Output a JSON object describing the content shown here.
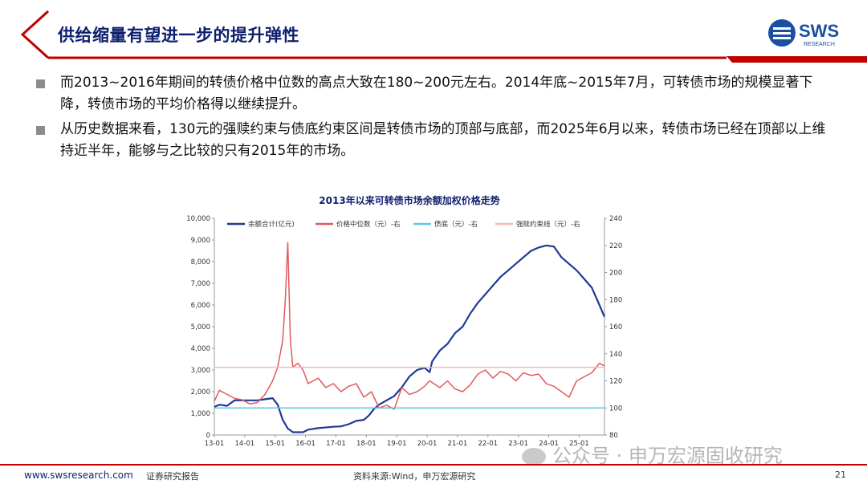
{
  "header": {
    "title": "供给缩量有望进一步的提升弹性",
    "logo_text": "SWS",
    "logo_subtext": "RESEARCH",
    "accent_color": "#c00000",
    "title_color": "#0d1f6e"
  },
  "bullets": [
    "而2013~2016年期间的转债价格中位数的高点大致在180~200元左右。2014年底~2015年7月，可转债市场的规模显著下降，转债市场的平均价格得以继续提升。",
    "从历史数据来看，130元的强赎约束与债底约束区间是转债市场的顶部与底部，而2025年6月以来，转债市场已经在顶部以上维持近半年，能够与之比较的只有2015年的市场。"
  ],
  "footer": {
    "url": "www.swsresearch.com",
    "category": "证券研究报告",
    "source": "资料来源:Wind，申万宏源研究",
    "page": "21"
  },
  "watermark": "公众号 · 申万宏源固收研究",
  "chart_data": {
    "type": "line",
    "title": "2013年以来可转债市场余额加权价格走势",
    "x_ticks": [
      "13-01",
      "14-01",
      "15-01",
      "16-01",
      "17-01",
      "18-01",
      "19-01",
      "20-01",
      "21-01",
      "22-01",
      "23-01",
      "24-01",
      "25-01"
    ],
    "x_range": [
      "2013-01",
      "2025-11"
    ],
    "y_left": {
      "min": 0,
      "max": 10000,
      "ticks": [
        "0",
        "1,000",
        "2,000",
        "3,000",
        "4,000",
        "5,000",
        "6,000",
        "7,000",
        "8,000",
        "9,000",
        "10,000"
      ]
    },
    "y_right": {
      "min": 80,
      "max": 240,
      "ticks": [
        "80",
        "100",
        "120",
        "140",
        "160",
        "180",
        "200",
        "220",
        "240"
      ]
    },
    "series": [
      {
        "name": "余额合计(亿元)",
        "axis": "left",
        "color": "#1f3a93",
        "points": [
          [
            "2013-01",
            1300
          ],
          [
            "2013-03",
            1400
          ],
          [
            "2013-06",
            1350
          ],
          [
            "2013-09",
            1600
          ],
          [
            "2013-12",
            1600
          ],
          [
            "2014-03",
            1600
          ],
          [
            "2014-06",
            1600
          ],
          [
            "2014-09",
            1650
          ],
          [
            "2014-12",
            1700
          ],
          [
            "2015-02",
            1400
          ],
          [
            "2015-04",
            700
          ],
          [
            "2015-06",
            300
          ],
          [
            "2015-08",
            130
          ],
          [
            "2015-12",
            130
          ],
          [
            "2016-02",
            250
          ],
          [
            "2016-06",
            320
          ],
          [
            "2016-12",
            380
          ],
          [
            "2017-03",
            400
          ],
          [
            "2017-06",
            500
          ],
          [
            "2017-09",
            650
          ],
          [
            "2017-12",
            700
          ],
          [
            "2018-02",
            900
          ],
          [
            "2018-04",
            1200
          ],
          [
            "2018-06",
            1400
          ],
          [
            "2018-09",
            1600
          ],
          [
            "2018-12",
            1800
          ],
          [
            "2019-03",
            2200
          ],
          [
            "2019-06",
            2700
          ],
          [
            "2019-09",
            3000
          ],
          [
            "2019-12",
            3100
          ],
          [
            "2020-02",
            2900
          ],
          [
            "2020-03",
            3400
          ],
          [
            "2020-06",
            3900
          ],
          [
            "2020-09",
            4200
          ],
          [
            "2020-12",
            4700
          ],
          [
            "2021-03",
            5000
          ],
          [
            "2021-06",
            5600
          ],
          [
            "2021-09",
            6100
          ],
          [
            "2021-12",
            6500
          ],
          [
            "2022-03",
            6900
          ],
          [
            "2022-06",
            7300
          ],
          [
            "2022-09",
            7600
          ],
          [
            "2022-12",
            7900
          ],
          [
            "2023-03",
            8200
          ],
          [
            "2023-06",
            8500
          ],
          [
            "2023-09",
            8650
          ],
          [
            "2023-12",
            8750
          ],
          [
            "2024-03",
            8700
          ],
          [
            "2024-06",
            8200
          ],
          [
            "2024-09",
            7900
          ],
          [
            "2024-12",
            7600
          ],
          [
            "2025-03",
            7200
          ],
          [
            "2025-06",
            6800
          ],
          [
            "2025-09",
            6000
          ],
          [
            "2025-11",
            5450
          ]
        ]
      },
      {
        "name": "价格中位数（元）-右",
        "axis": "right",
        "color": "#e05a5a",
        "points": [
          [
            "2013-01",
            105
          ],
          [
            "2013-03",
            113
          ],
          [
            "2013-06",
            110
          ],
          [
            "2013-09",
            107
          ],
          [
            "2013-12",
            106
          ],
          [
            "2014-03",
            103
          ],
          [
            "2014-06",
            104
          ],
          [
            "2014-09",
            110
          ],
          [
            "2014-12",
            120
          ],
          [
            "2015-02",
            130
          ],
          [
            "2015-04",
            150
          ],
          [
            "2015-05",
            180
          ],
          [
            "2015-06",
            222
          ],
          [
            "2015-07",
            150
          ],
          [
            "2015-08",
            130
          ],
          [
            "2015-10",
            133
          ],
          [
            "2015-12",
            128
          ],
          [
            "2016-02",
            118
          ],
          [
            "2016-06",
            122
          ],
          [
            "2016-09",
            115
          ],
          [
            "2016-12",
            118
          ],
          [
            "2017-03",
            112
          ],
          [
            "2017-06",
            116
          ],
          [
            "2017-09",
            118
          ],
          [
            "2017-12",
            108
          ],
          [
            "2018-03",
            112
          ],
          [
            "2018-06",
            100
          ],
          [
            "2018-09",
            102
          ],
          [
            "2018-12",
            99
          ],
          [
            "2019-03",
            115
          ],
          [
            "2019-06",
            110
          ],
          [
            "2019-09",
            112
          ],
          [
            "2019-12",
            116
          ],
          [
            "2020-02",
            120
          ],
          [
            "2020-06",
            115
          ],
          [
            "2020-09",
            120
          ],
          [
            "2020-12",
            114
          ],
          [
            "2021-03",
            112
          ],
          [
            "2021-06",
            117
          ],
          [
            "2021-09",
            125
          ],
          [
            "2021-12",
            128
          ],
          [
            "2022-03",
            122
          ],
          [
            "2022-06",
            127
          ],
          [
            "2022-09",
            125
          ],
          [
            "2022-12",
            120
          ],
          [
            "2023-03",
            126
          ],
          [
            "2023-06",
            124
          ],
          [
            "2023-09",
            125
          ],
          [
            "2023-12",
            118
          ],
          [
            "2024-03",
            116
          ],
          [
            "2024-06",
            112
          ],
          [
            "2024-09",
            108
          ],
          [
            "2024-12",
            120
          ],
          [
            "2025-03",
            123
          ],
          [
            "2025-06",
            126
          ],
          [
            "2025-09",
            133
          ],
          [
            "2025-11",
            131
          ]
        ]
      },
      {
        "name": "债底（元）-右",
        "axis": "right",
        "color": "#5bc8e8",
        "constant": 100
      },
      {
        "name": "强赎约束线（元）-右",
        "axis": "right",
        "color": "#f4b9b9",
        "constant": 130
      }
    ]
  }
}
